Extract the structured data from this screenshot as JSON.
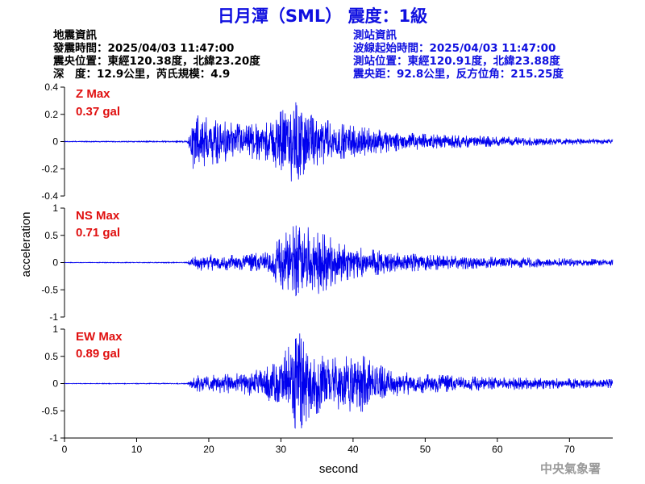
{
  "header": {
    "title": "日月潭（SML） 震度：1級",
    "quake_info": {
      "heading": "地震資訊",
      "origin_time": "發震時間：2025/04/03 11:47:00",
      "epicenter": "震央位置：東經120.38度，北緯23.20度",
      "depth_magnitude": "深　度：12.9公里，芮氏規模：4.9"
    },
    "station_info": {
      "heading": "測站資訊",
      "wave_start": "波線起始時間：2025/04/03 11:47:00",
      "station_location": "測站位置：東經120.91度，北緯23.88度",
      "distance_azimuth": "震央距：92.8公里，反方位角：215.25度"
    }
  },
  "credit": "中央氣象署",
  "colors": {
    "trace": "#0000ee",
    "max_label": "#e01010",
    "title": "#1010e0"
  },
  "chart_data": {
    "type": "line",
    "xlabel": "second",
    "ylabel": "acceleration",
    "xlim": [
      0,
      76
    ],
    "x_ticks": [
      0,
      10,
      20,
      30,
      40,
      50,
      60,
      70
    ],
    "grid": false,
    "panels": [
      {
        "component": "Z",
        "max_label": "Z Max",
        "max_value": "0.37 gal",
        "ylim": [
          -0.4,
          0.4
        ],
        "y_ticks": [
          0.4,
          0.2,
          0,
          -0.2,
          -0.4
        ],
        "y_tick_labels": [
          "0.4",
          "0.2",
          "0",
          "-0.2",
          "-0.4"
        ],
        "envelope": [
          [
            0,
            0.003
          ],
          [
            12,
            0.004
          ],
          [
            17.0,
            0.006
          ],
          [
            17.3,
            0.05
          ],
          [
            17.8,
            0.2
          ],
          [
            19.5,
            0.18
          ],
          [
            22,
            0.15
          ],
          [
            25,
            0.12
          ],
          [
            28,
            0.14
          ],
          [
            31,
            0.26
          ],
          [
            32.5,
            0.37
          ],
          [
            34,
            0.2
          ],
          [
            38,
            0.13
          ],
          [
            42,
            0.1
          ],
          [
            46,
            0.07
          ],
          [
            52,
            0.05
          ],
          [
            60,
            0.035
          ],
          [
            68,
            0.025
          ],
          [
            76,
            0.018
          ]
        ]
      },
      {
        "component": "NS",
        "max_label": "NS Max",
        "max_value": "0.71 gal",
        "ylim": [
          -1,
          1
        ],
        "y_ticks": [
          1,
          0.5,
          0,
          -0.5,
          -1
        ],
        "y_tick_labels": [
          "1",
          "0.5",
          "0",
          "-0.5",
          "-1"
        ],
        "envelope": [
          [
            0,
            0.005
          ],
          [
            17.0,
            0.008
          ],
          [
            17.5,
            0.07
          ],
          [
            18.5,
            0.15
          ],
          [
            21,
            0.15
          ],
          [
            25,
            0.13
          ],
          [
            28,
            0.22
          ],
          [
            30,
            0.45
          ],
          [
            31.5,
            0.66
          ],
          [
            33,
            0.71
          ],
          [
            35,
            0.55
          ],
          [
            36.5,
            0.5
          ],
          [
            38,
            0.35
          ],
          [
            42,
            0.25
          ],
          [
            46,
            0.18
          ],
          [
            52,
            0.13
          ],
          [
            60,
            0.1
          ],
          [
            68,
            0.08
          ],
          [
            76,
            0.06
          ]
        ]
      },
      {
        "component": "EW",
        "max_label": "EW Max",
        "max_value": "0.89 gal",
        "ylim": [
          -1,
          1
        ],
        "y_ticks": [
          1,
          0.5,
          0,
          -0.5,
          -1
        ],
        "y_tick_labels": [
          "1",
          "0.5",
          "0",
          "-0.5",
          "-1"
        ],
        "envelope": [
          [
            0,
            0.005
          ],
          [
            17.0,
            0.008
          ],
          [
            17.5,
            0.07
          ],
          [
            18.5,
            0.15
          ],
          [
            21,
            0.16
          ],
          [
            25,
            0.2
          ],
          [
            28,
            0.3
          ],
          [
            30,
            0.5
          ],
          [
            31.5,
            0.75
          ],
          [
            32.5,
            0.89
          ],
          [
            34,
            0.6
          ],
          [
            37,
            0.45
          ],
          [
            41,
            0.55
          ],
          [
            42,
            0.45
          ],
          [
            45,
            0.25
          ],
          [
            50,
            0.17
          ],
          [
            58,
            0.12
          ],
          [
            66,
            0.1
          ],
          [
            76,
            0.08
          ]
        ]
      }
    ]
  }
}
